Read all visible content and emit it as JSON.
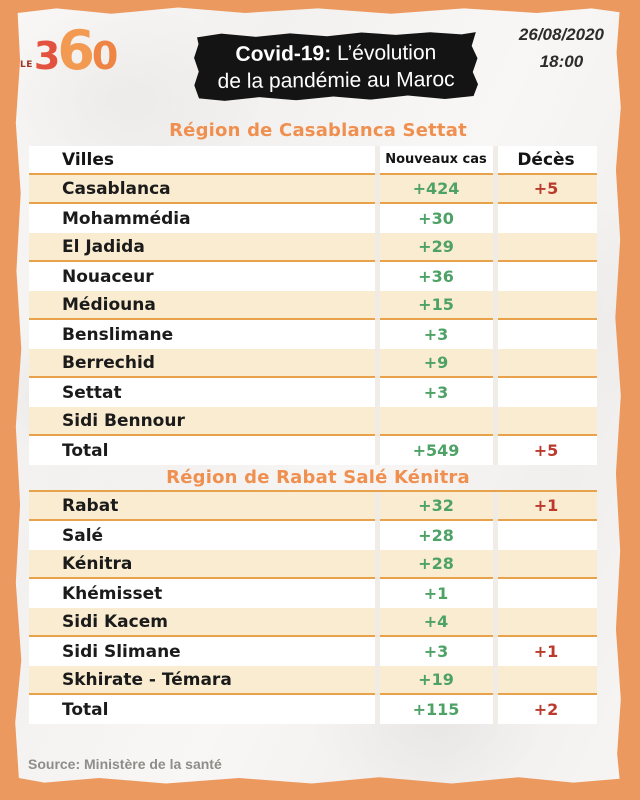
{
  "header": {
    "logo": {
      "le": "LE",
      "digit1": "3",
      "digit2": "6",
      "digit3": "0"
    },
    "banner": {
      "title_bold": "Covid-19:",
      "title_light": " L’évolution",
      "line2": "de la pandémie au Maroc"
    },
    "date": "26/08/2020",
    "time": "18:00"
  },
  "chart_data": [
    {
      "type": "table",
      "title": "Région de Casablanca Settat",
      "columns": [
        "Villes",
        "Nouveaux cas",
        "Décès"
      ],
      "header_visible": true,
      "rows": [
        [
          "Casablanca",
          "+424",
          "+5"
        ],
        [
          "Mohammédia",
          "+30",
          ""
        ],
        [
          "El Jadida",
          "+29",
          ""
        ],
        [
          "Nouaceur",
          "+36",
          ""
        ],
        [
          "Médiouna",
          "+15",
          ""
        ],
        [
          "Benslimane",
          "+3",
          ""
        ],
        [
          "Berrechid",
          "+9",
          ""
        ],
        [
          "Settat",
          "+3",
          ""
        ],
        [
          "Sidi Bennour",
          "",
          ""
        ],
        [
          "Total",
          "+549",
          "+5"
        ]
      ]
    },
    {
      "type": "table",
      "title": "Région de Rabat Salé Kénitra",
      "columns": [
        "Villes",
        "Nouveaux cas",
        "Décès"
      ],
      "header_visible": false,
      "rows": [
        [
          "Rabat",
          "+32",
          "+1"
        ],
        [
          "Salé",
          "+28",
          ""
        ],
        [
          "Kénitra",
          "+28",
          ""
        ],
        [
          "Khémisset",
          "+1",
          ""
        ],
        [
          "Sidi Kacem",
          "+4",
          ""
        ],
        [
          "Sidi Slimane",
          "+3",
          "+1"
        ],
        [
          "Skhirate - Témara",
          "+19",
          ""
        ],
        [
          "Total",
          "+115",
          "+2"
        ]
      ]
    }
  ],
  "footer": {
    "source": "Source: Ministère de la santé"
  },
  "colors": {
    "background_orange": "#ec9960",
    "title_orange": "#f09050",
    "row_cream": "#faecd0",
    "divider_orange": "#e8a24c",
    "cases_green": "#4ea266",
    "deaths_red": "#bb3a2d",
    "banner_black": "#141414"
  }
}
